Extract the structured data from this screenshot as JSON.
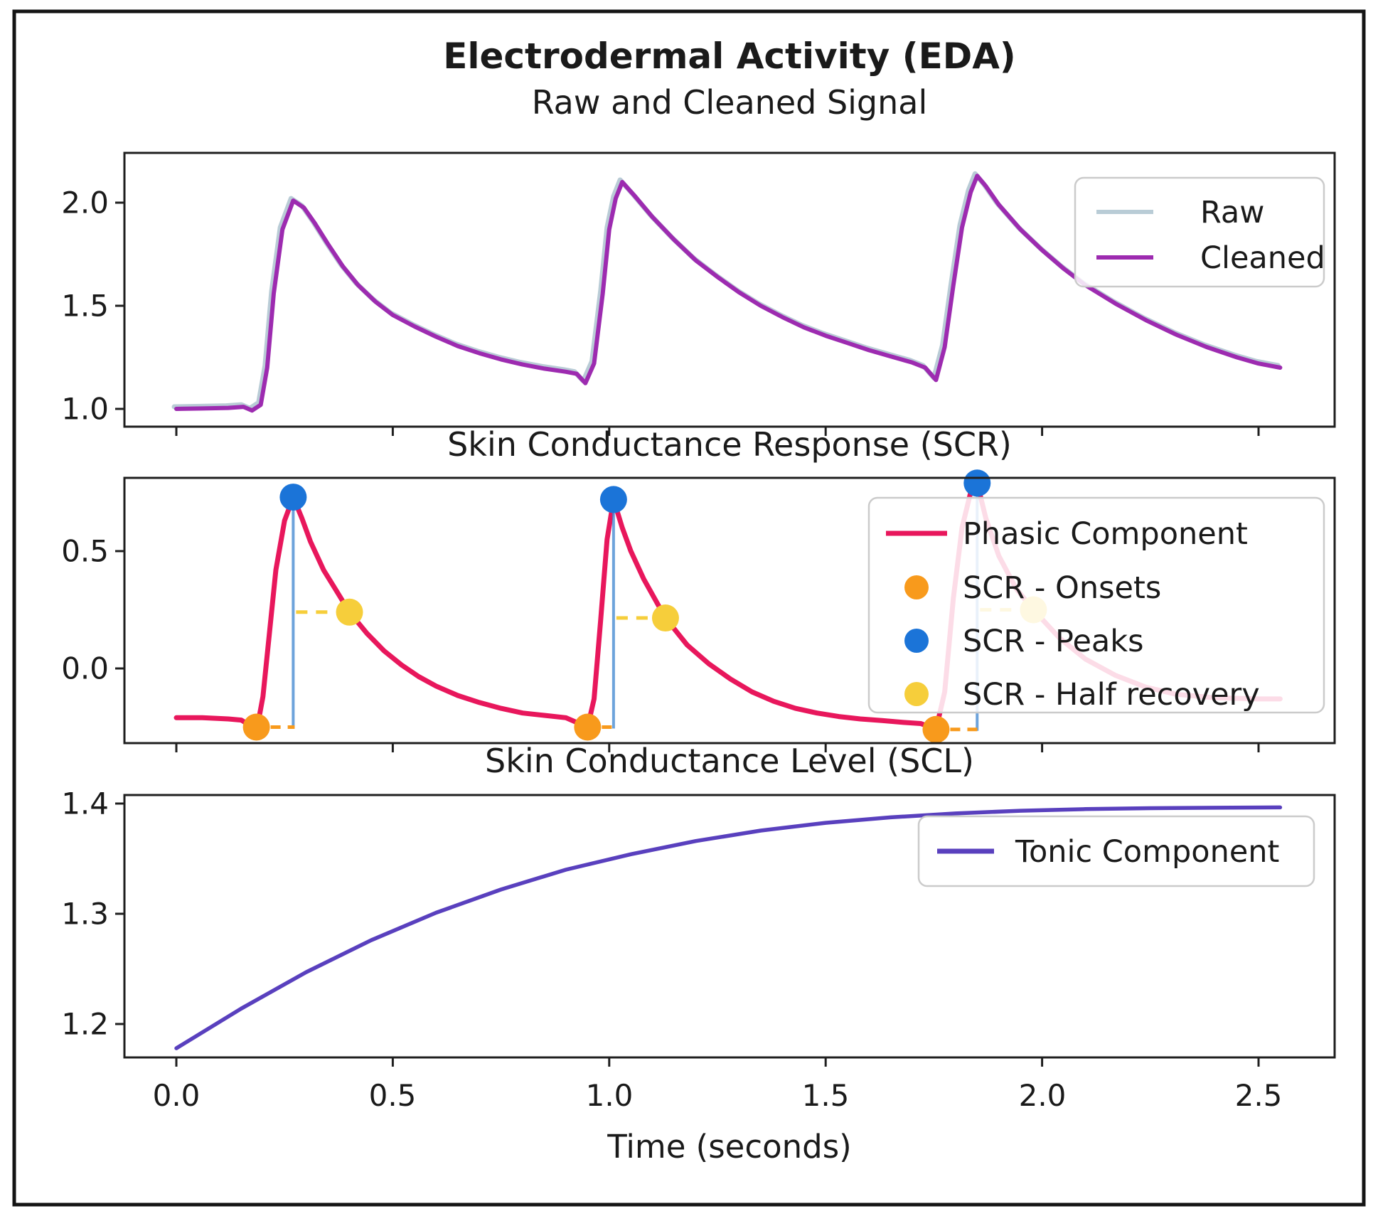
{
  "figure": {
    "title": "Electrodermal Activity (EDA)",
    "background": "#ffffff",
    "border_color": "#141414"
  },
  "x_axis": {
    "label": "Time (seconds)",
    "tick_labels": [
      "0.0",
      "0.5",
      "1.0",
      "1.5",
      "2.0",
      "2.5"
    ],
    "tick_values": [
      0,
      0.5,
      1.0,
      1.5,
      2.0,
      2.5
    ],
    "xlim": [
      -0.13,
      2.68
    ]
  },
  "colors": {
    "raw": "#b9ccd6",
    "cleaned": "#9d2bb0",
    "phasic": "#e8175c",
    "onset": "#f89a1c",
    "peak": "#1b74d8",
    "half": "#f6ce3b",
    "tonic": "#5940be",
    "vline": "#3d85d0",
    "spine": "#1f1f1f",
    "text": "#1a1a1a"
  },
  "chart_data": [
    {
      "type": "line",
      "title": "Raw and Cleaned Signal",
      "ylim": [
        0.91,
        2.24
      ],
      "ytick_labels": [
        "2.0",
        "1.5",
        "1.0"
      ],
      "ytick_values": [
        2.0,
        1.5,
        1.0
      ],
      "legend_position": "upper right",
      "legend": [
        {
          "label": "Raw",
          "marker": "line",
          "color_key": "raw"
        },
        {
          "label": "Cleaned",
          "marker": "line",
          "color_key": "cleaned"
        }
      ],
      "series": [
        {
          "name": "Raw",
          "note": "visually overlaps Cleaned",
          "overlaps": "Cleaned"
        },
        {
          "name": "Cleaned",
          "points": [
            [
              0.0,
              1.0
            ],
            [
              0.06,
              1.002
            ],
            [
              0.12,
              1.005
            ],
            [
              0.155,
              1.01
            ],
            [
              0.175,
              0.992
            ],
            [
              0.195,
              1.02
            ],
            [
              0.21,
              1.2
            ],
            [
              0.225,
              1.56
            ],
            [
              0.245,
              1.87
            ],
            [
              0.27,
              2.01
            ],
            [
              0.295,
              1.975
            ],
            [
              0.32,
              1.9
            ],
            [
              0.35,
              1.8
            ],
            [
              0.385,
              1.69
            ],
            [
              0.42,
              1.6
            ],
            [
              0.46,
              1.52
            ],
            [
              0.5,
              1.455
            ],
            [
              0.55,
              1.4
            ],
            [
              0.6,
              1.35
            ],
            [
              0.65,
              1.305
            ],
            [
              0.7,
              1.27
            ],
            [
              0.75,
              1.24
            ],
            [
              0.8,
              1.215
            ],
            [
              0.85,
              1.195
            ],
            [
              0.9,
              1.18
            ],
            [
              0.925,
              1.17
            ],
            [
              0.945,
              1.125
            ],
            [
              0.965,
              1.22
            ],
            [
              0.985,
              1.56
            ],
            [
              1.0,
              1.87
            ],
            [
              1.015,
              2.02
            ],
            [
              1.03,
              2.1
            ],
            [
              1.06,
              2.03
            ],
            [
              1.1,
              1.93
            ],
            [
              1.15,
              1.82
            ],
            [
              1.2,
              1.72
            ],
            [
              1.25,
              1.64
            ],
            [
              1.3,
              1.565
            ],
            [
              1.35,
              1.5
            ],
            [
              1.4,
              1.445
            ],
            [
              1.45,
              1.395
            ],
            [
              1.5,
              1.355
            ],
            [
              1.55,
              1.32
            ],
            [
              1.6,
              1.285
            ],
            [
              1.65,
              1.255
            ],
            [
              1.7,
              1.225
            ],
            [
              1.73,
              1.2
            ],
            [
              1.755,
              1.14
            ],
            [
              1.775,
              1.3
            ],
            [
              1.795,
              1.6
            ],
            [
              1.815,
              1.88
            ],
            [
              1.835,
              2.05
            ],
            [
              1.85,
              2.13
            ],
            [
              1.87,
              2.08
            ],
            [
              1.9,
              1.99
            ],
            [
              1.95,
              1.87
            ],
            [
              2.0,
              1.77
            ],
            [
              2.05,
              1.68
            ],
            [
              2.1,
              1.6
            ],
            [
              2.17,
              1.51
            ],
            [
              2.24,
              1.43
            ],
            [
              2.31,
              1.36
            ],
            [
              2.38,
              1.3
            ],
            [
              2.45,
              1.25
            ],
            [
              2.5,
              1.22
            ],
            [
              2.55,
              1.2
            ]
          ]
        }
      ]
    },
    {
      "type": "line",
      "title": "Skin Conductance Response (SCR)",
      "ylim": [
        -0.32,
        0.81
      ],
      "ytick_labels": [
        "0.5",
        "0.0"
      ],
      "ytick_values": [
        0.5,
        0.0
      ],
      "legend_position": "upper right",
      "legend": [
        {
          "label": "Phasic Component",
          "marker": "line",
          "color_key": "phasic"
        },
        {
          "label": "SCR - Onsets",
          "marker": "dot",
          "color_key": "onset"
        },
        {
          "label": "SCR - Peaks",
          "marker": "dot",
          "color_key": "peak"
        },
        {
          "label": "SCR - Half recovery",
          "marker": "dot",
          "color_key": "half"
        }
      ],
      "series": [
        {
          "name": "Phasic Component",
          "points": [
            [
              0.0,
              -0.21
            ],
            [
              0.06,
              -0.21
            ],
            [
              0.12,
              -0.215
            ],
            [
              0.15,
              -0.22
            ],
            [
              0.175,
              -0.248
            ],
            [
              0.19,
              -0.22
            ],
            [
              0.2,
              -0.12
            ],
            [
              0.215,
              0.15
            ],
            [
              0.23,
              0.42
            ],
            [
              0.25,
              0.63
            ],
            [
              0.27,
              0.73
            ],
            [
              0.29,
              0.64
            ],
            [
              0.31,
              0.54
            ],
            [
              0.34,
              0.42
            ],
            [
              0.37,
              0.33
            ],
            [
              0.4,
              0.24
            ],
            [
              0.44,
              0.15
            ],
            [
              0.48,
              0.075
            ],
            [
              0.52,
              0.015
            ],
            [
              0.56,
              -0.035
            ],
            [
              0.6,
              -0.075
            ],
            [
              0.65,
              -0.115
            ],
            [
              0.7,
              -0.145
            ],
            [
              0.75,
              -0.17
            ],
            [
              0.8,
              -0.19
            ],
            [
              0.85,
              -0.2
            ],
            [
              0.9,
              -0.21
            ],
            [
              0.925,
              -0.23
            ],
            [
              0.95,
              -0.25
            ],
            [
              0.965,
              -0.13
            ],
            [
              0.98,
              0.2
            ],
            [
              0.995,
              0.55
            ],
            [
              1.01,
              0.72
            ],
            [
              1.03,
              0.6
            ],
            [
              1.05,
              0.5
            ],
            [
              1.08,
              0.38
            ],
            [
              1.13,
              0.215
            ],
            [
              1.18,
              0.1
            ],
            [
              1.23,
              0.02
            ],
            [
              1.28,
              -0.045
            ],
            [
              1.33,
              -0.1
            ],
            [
              1.38,
              -0.14
            ],
            [
              1.43,
              -0.17
            ],
            [
              1.48,
              -0.19
            ],
            [
              1.53,
              -0.205
            ],
            [
              1.58,
              -0.215
            ],
            [
              1.63,
              -0.222
            ],
            [
              1.68,
              -0.23
            ],
            [
              1.72,
              -0.235
            ],
            [
              1.755,
              -0.26
            ],
            [
              1.775,
              -0.1
            ],
            [
              1.795,
              0.3
            ],
            [
              1.815,
              0.6
            ],
            [
              1.835,
              0.75
            ],
            [
              1.85,
              0.79
            ],
            [
              1.87,
              0.64
            ],
            [
              1.9,
              0.48
            ],
            [
              1.94,
              0.34
            ],
            [
              1.98,
              0.25
            ],
            [
              2.04,
              0.13
            ],
            [
              2.1,
              0.04
            ],
            [
              2.17,
              -0.03
            ],
            [
              2.24,
              -0.08
            ],
            [
              2.31,
              -0.11
            ],
            [
              2.4,
              -0.125
            ],
            [
              2.5,
              -0.13
            ],
            [
              2.55,
              -0.13
            ]
          ]
        }
      ],
      "events": [
        {
          "onset": {
            "t": 0.185,
            "v": -0.25
          },
          "peak": {
            "t": 0.27,
            "v": 0.73
          },
          "half": {
            "t": 0.4,
            "v": 0.24
          }
        },
        {
          "onset": {
            "t": 0.95,
            "v": -0.25
          },
          "peak": {
            "t": 1.01,
            "v": 0.72
          },
          "half": {
            "t": 1.13,
            "v": 0.215
          }
        },
        {
          "onset": {
            "t": 1.755,
            "v": -0.26
          },
          "peak": {
            "t": 1.85,
            "v": 0.79
          },
          "half": {
            "t": 1.98,
            "v": 0.25
          }
        }
      ]
    },
    {
      "type": "line",
      "title": "Skin Conductance Level (SCL)",
      "ylim": [
        1.17,
        1.41
      ],
      "ytick_labels": [
        "1.4",
        "1.3",
        "1.2"
      ],
      "ytick_values": [
        1.4,
        1.3,
        1.2
      ],
      "legend_position": "upper right",
      "legend": [
        {
          "label": "Tonic Component",
          "marker": "line",
          "color_key": "tonic"
        }
      ],
      "series": [
        {
          "name": "Tonic Component",
          "points": [
            [
              0.0,
              1.178
            ],
            [
              0.15,
              1.214
            ],
            [
              0.3,
              1.247
            ],
            [
              0.45,
              1.276
            ],
            [
              0.6,
              1.301
            ],
            [
              0.75,
              1.322
            ],
            [
              0.9,
              1.34
            ],
            [
              1.05,
              1.354
            ],
            [
              1.2,
              1.366
            ],
            [
              1.35,
              1.3755
            ],
            [
              1.5,
              1.3825
            ],
            [
              1.65,
              1.3875
            ],
            [
              1.8,
              1.391
            ],
            [
              1.95,
              1.3935
            ],
            [
              2.1,
              1.395
            ],
            [
              2.25,
              1.3958
            ],
            [
              2.4,
              1.3962
            ],
            [
              2.55,
              1.3965
            ]
          ]
        }
      ]
    }
  ]
}
